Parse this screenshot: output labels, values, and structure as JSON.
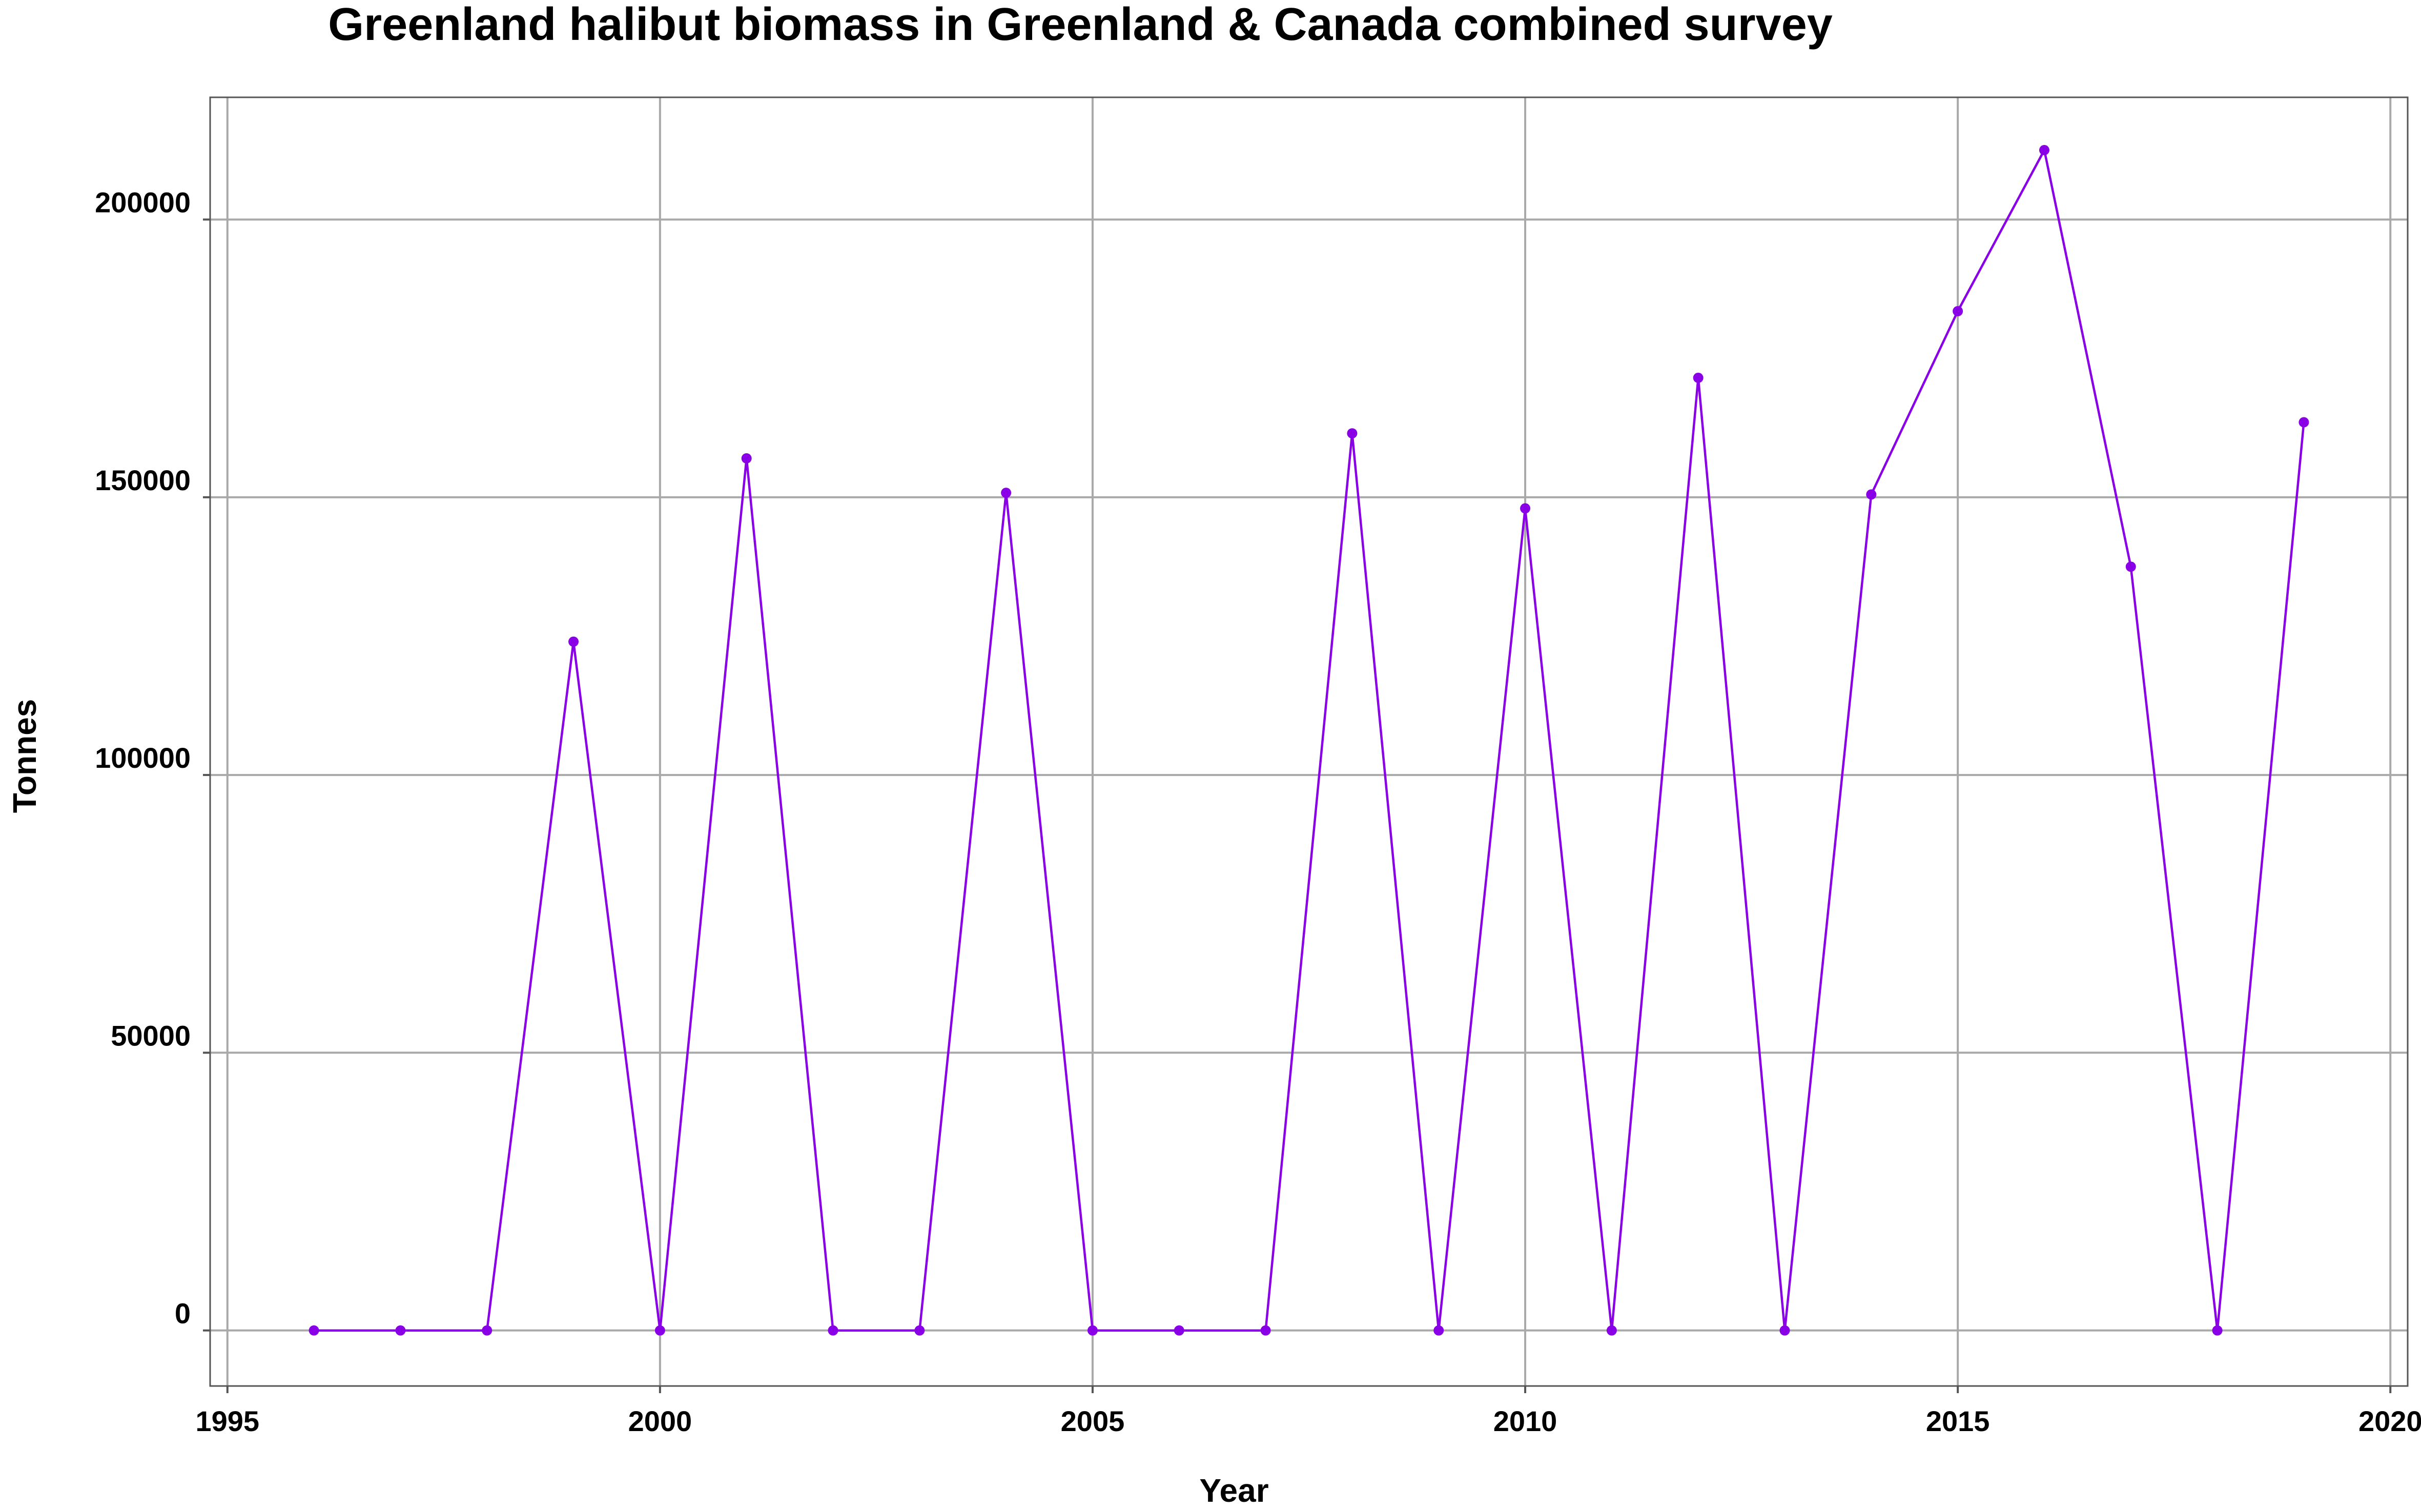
{
  "chart_data": {
    "type": "line",
    "title": "Greenland halibut biomass in Greenland & Canada combined survey",
    "xlabel": "Year",
    "ylabel": "Tonnes",
    "xlim": [
      1994.8,
      2020.2
    ],
    "ylim": [
      -10000,
      222000
    ],
    "x_ticks": [
      1995,
      2000,
      2005,
      2010,
      2015,
      2020
    ],
    "y_ticks": [
      0,
      50000,
      100000,
      150000,
      200000
    ],
    "grid": true,
    "legend": "none",
    "series": [
      {
        "color": "#8a00e6",
        "x": [
          1996,
          1997,
          1998,
          1999,
          2000,
          2001,
          2002,
          2003,
          2004,
          2005,
          2006,
          2007,
          2008,
          2009,
          2010,
          2011,
          2012,
          2013,
          2014,
          2015,
          2016,
          2017,
          2018,
          2019
        ],
        "values": [
          0,
          0,
          0,
          124000,
          0,
          157000,
          0,
          0,
          150800,
          0,
          0,
          0,
          161500,
          0,
          148000,
          0,
          171500,
          0,
          150500,
          183500,
          212500,
          137500,
          0,
          163500
        ]
      }
    ]
  }
}
